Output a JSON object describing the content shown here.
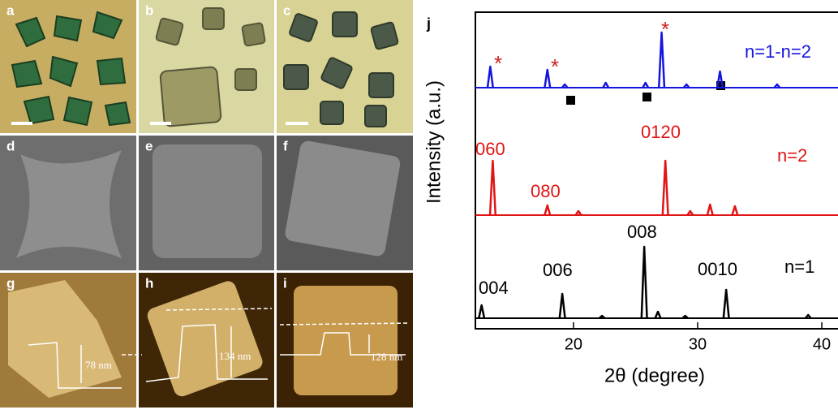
{
  "panels": [
    {
      "label": "a"
    },
    {
      "label": "b"
    },
    {
      "label": "c"
    },
    {
      "label": "d"
    },
    {
      "label": "e"
    },
    {
      "label": "f"
    },
    {
      "label": "g",
      "annotation": "78 nm"
    },
    {
      "label": "h",
      "annotation": "134 nm"
    },
    {
      "label": "i",
      "annotation": "128 nm"
    }
  ],
  "chart_data": {
    "type": "line",
    "panel_label": "j",
    "xlabel": "2θ (degree)",
    "ylabel": "Intensity (a.u.)",
    "xlim": [
      12.1,
      41.5
    ],
    "xticks": [
      20,
      30,
      40
    ],
    "series": [
      {
        "name": "n=1-n=2",
        "color": "#1515e0",
        "x": [
          13.3,
          17.9,
          19.3,
          22.6,
          25.8,
          27.1,
          29.1,
          31.8,
          36.4
        ],
        "values": [
          26,
          22,
          4,
          6,
          6,
          68,
          4,
          20,
          4
        ]
      },
      {
        "name": "n=2",
        "color": "#e01515",
        "x": [
          13.5,
          17.9,
          20.4,
          27.4,
          29.4,
          31.0,
          33.0
        ],
        "values": [
          67,
          12,
          5,
          67,
          5,
          13,
          11
        ]
      },
      {
        "name": "n=1",
        "color": "#000000",
        "x": [
          12.6,
          19.1,
          22.3,
          25.7,
          26.8,
          29.0,
          32.3,
          38.9
        ],
        "values": [
          16,
          30,
          3,
          88,
          8,
          3,
          35,
          4
        ]
      }
    ],
    "peak_labels": [
      "060",
      "080",
      "0120",
      "004",
      "006",
      "008",
      "0010"
    ]
  }
}
